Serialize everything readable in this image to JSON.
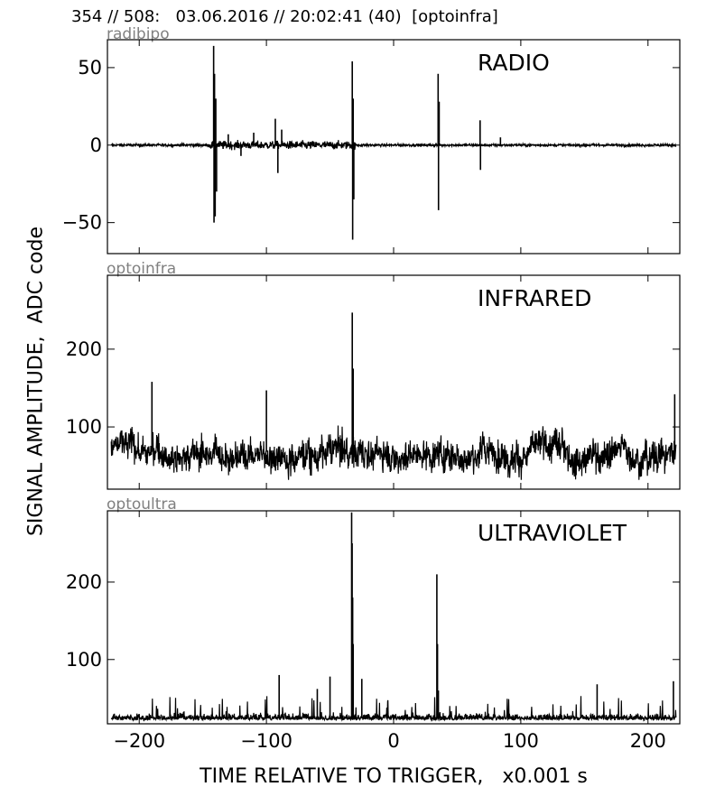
{
  "header": {
    "title": "354 // 508:   03.06.2016 // 20:02:41 (40)  [optoinfra]"
  },
  "ylabel": "SIGNAL AMPLITUDE,  ADC code",
  "xlabel": "TIME RELATIVE TO TRIGGER,   x0.001 s",
  "x_ticks": [
    "−200",
    "−100",
    "0",
    "100",
    "200"
  ],
  "colors": {
    "trace": "#000000",
    "panel_id": "#808080",
    "frame": "#000000"
  },
  "chart_data": [
    {
      "type": "line",
      "id_label": "radibipo",
      "title": "RADIO",
      "xlim": [
        -225,
        225
      ],
      "ylim": [
        -70,
        68
      ],
      "y_tick_values": [
        -50,
        0,
        50
      ],
      "y_tick_labels": [
        "−50",
        "0",
        "50"
      ],
      "baseline": 0,
      "noise": 0.8,
      "bipolar": true,
      "spikes": [
        {
          "x": -141.5,
          "y": 64
        },
        {
          "x": -141.2,
          "y": -50
        },
        {
          "x": -140.8,
          "y": 46
        },
        {
          "x": -140.3,
          "y": -46
        },
        {
          "x": -139.8,
          "y": 30
        },
        {
          "x": -139.2,
          "y": -30
        },
        {
          "x": -130,
          "y": 7
        },
        {
          "x": -120,
          "y": -7
        },
        {
          "x": -110,
          "y": 8
        },
        {
          "x": -93,
          "y": 17
        },
        {
          "x": -91,
          "y": -18
        },
        {
          "x": -88,
          "y": 10
        },
        {
          "x": -32.5,
          "y": 54
        },
        {
          "x": -32.2,
          "y": -61
        },
        {
          "x": -31.8,
          "y": 30
        },
        {
          "x": -31.3,
          "y": -35
        },
        {
          "x": 35,
          "y": 46
        },
        {
          "x": 35.3,
          "y": -42
        },
        {
          "x": 35.8,
          "y": 28
        },
        {
          "x": 68,
          "y": 16
        },
        {
          "x": 68.3,
          "y": -16
        },
        {
          "x": 84,
          "y": 5
        }
      ]
    },
    {
      "type": "line",
      "id_label": "optoinfra",
      "title": "INFRARED",
      "xlim": [
        -225,
        225
      ],
      "ylim": [
        20,
        295
      ],
      "y_tick_values": [
        100,
        200
      ],
      "y_tick_labels": [
        "100",
        "200"
      ],
      "baseline": 68,
      "noise": 18,
      "bipolar": false,
      "spikes": [
        {
          "x": -190,
          "y": 158
        },
        {
          "x": -100,
          "y": 147
        },
        {
          "x": -32.5,
          "y": 247
        },
        {
          "x": -31.8,
          "y": 175
        },
        {
          "x": 221,
          "y": 142
        }
      ]
    },
    {
      "type": "line",
      "id_label": "optoultra",
      "title": "ULTRAVIOLET",
      "xlim": [
        -225,
        225
      ],
      "ylim": [
        17,
        292
      ],
      "y_tick_values": [
        100,
        200
      ],
      "y_tick_labels": [
        "100",
        "200"
      ],
      "baseline": 25,
      "noise": 7,
      "bipolar": false,
      "spikes": [
        {
          "x": -33,
          "y": 290
        },
        {
          "x": -32.6,
          "y": 250
        },
        {
          "x": -32.2,
          "y": 180
        },
        {
          "x": -31.8,
          "y": 120
        },
        {
          "x": 34,
          "y": 210
        },
        {
          "x": 34.5,
          "y": 120
        },
        {
          "x": 35.2,
          "y": 60
        },
        {
          "x": -90,
          "y": 80
        },
        {
          "x": -50,
          "y": 78
        },
        {
          "x": -60,
          "y": 62
        },
        {
          "x": -25,
          "y": 75
        },
        {
          "x": 160,
          "y": 68
        },
        {
          "x": 220,
          "y": 72
        }
      ]
    }
  ]
}
